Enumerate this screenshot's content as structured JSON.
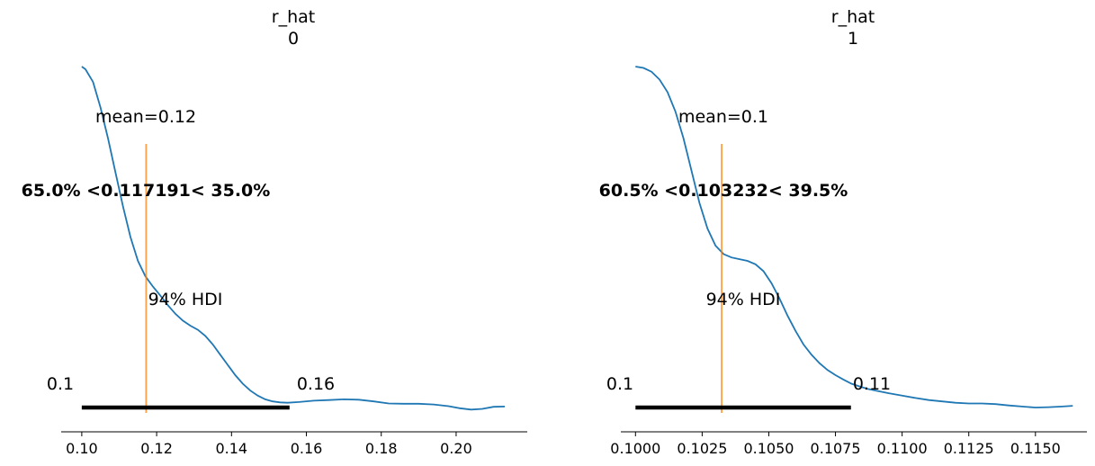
{
  "colors": {
    "kde": "#1f77b4",
    "reference": "#ff7f0e",
    "hdi": "#000000",
    "axis": "#000000"
  },
  "chart_data": [
    {
      "type": "line",
      "title": "r_hat",
      "subtitle": "0",
      "xlim": [
        0.0945,
        0.219
      ],
      "ylim": [
        0,
        1
      ],
      "x_ticks": [
        0.1,
        0.12,
        0.14,
        0.16,
        0.18,
        0.2
      ],
      "x_tick_labels": [
        "0.10",
        "0.12",
        "0.14",
        "0.16",
        "0.18",
        "0.20"
      ],
      "density": {
        "x": [
          0.1,
          0.101,
          0.103,
          0.105,
          0.107,
          0.109,
          0.111,
          0.113,
          0.115,
          0.117,
          0.119,
          0.121,
          0.123,
          0.125,
          0.127,
          0.129,
          0.131,
          0.133,
          0.135,
          0.137,
          0.139,
          0.141,
          0.143,
          0.145,
          0.147,
          0.149,
          0.151,
          0.153,
          0.155,
          0.158,
          0.162,
          0.166,
          0.17,
          0.174,
          0.178,
          0.182,
          0.186,
          0.19,
          0.194,
          0.198,
          0.201,
          0.204,
          0.207,
          0.21,
          0.213
        ],
        "y": [
          1.0,
          0.992,
          0.955,
          0.88,
          0.79,
          0.69,
          0.59,
          0.5,
          0.43,
          0.385,
          0.355,
          0.328,
          0.3,
          0.275,
          0.255,
          0.24,
          0.228,
          0.21,
          0.185,
          0.155,
          0.125,
          0.095,
          0.07,
          0.05,
          0.035,
          0.024,
          0.018,
          0.015,
          0.014,
          0.016,
          0.02,
          0.022,
          0.024,
          0.023,
          0.018,
          0.012,
          0.011,
          0.011,
          0.009,
          0.004,
          -0.002,
          -0.006,
          -0.004,
          0.002,
          0.003
        ]
      },
      "mean_label": "mean=0.12",
      "reference": {
        "value": 0.117191,
        "label": "65.0% <0.117191< 35.0%"
      },
      "hdi": {
        "low": 0.1,
        "high": 0.1555,
        "label": "94% HDI",
        "low_label": "0.1",
        "high_label": "0.16"
      }
    },
    {
      "type": "line",
      "title": "r_hat",
      "subtitle": "1",
      "xlim": [
        0.09945,
        0.11693
      ],
      "ylim": [
        0,
        1
      ],
      "x_ticks": [
        0.1,
        0.1025,
        0.105,
        0.1075,
        0.11,
        0.1125,
        0.115
      ],
      "x_tick_labels": [
        "0.1000",
        "0.1025",
        "0.1050",
        "0.1075",
        "0.1100",
        "0.1125",
        "0.1150"
      ],
      "density": {
        "x": [
          0.1,
          0.1003,
          0.1006,
          0.1009,
          0.1012,
          0.1015,
          0.1018,
          0.1021,
          0.1024,
          0.1027,
          0.103,
          0.1033,
          0.1036,
          0.1039,
          0.1042,
          0.1045,
          0.1048,
          0.1051,
          0.1054,
          0.1057,
          0.106,
          0.1063,
          0.1066,
          0.1069,
          0.1072,
          0.1075,
          0.1078,
          0.1081,
          0.1084,
          0.1087,
          0.109,
          0.1095,
          0.11,
          0.1105,
          0.111,
          0.1115,
          0.112,
          0.1125,
          0.113,
          0.1135,
          0.114,
          0.1145,
          0.115,
          0.1155,
          0.116,
          0.1164
        ],
        "y": [
          1.0,
          0.996,
          0.985,
          0.962,
          0.925,
          0.868,
          0.79,
          0.695,
          0.6,
          0.525,
          0.475,
          0.45,
          0.44,
          0.435,
          0.43,
          0.42,
          0.4,
          0.365,
          0.32,
          0.27,
          0.225,
          0.185,
          0.155,
          0.13,
          0.11,
          0.095,
          0.082,
          0.07,
          0.062,
          0.055,
          0.05,
          0.042,
          0.035,
          0.028,
          0.022,
          0.018,
          0.014,
          0.012,
          0.012,
          0.01,
          0.006,
          0.003,
          0.0,
          0.001,
          0.003,
          0.005
        ]
      },
      "mean_label": "mean=0.1",
      "reference": {
        "value": 0.103232,
        "label": "60.5% <0.103232< 39.5%"
      },
      "hdi": {
        "low": 0.1,
        "high": 0.10808,
        "label": "94% HDI",
        "low_label": "0.1",
        "high_label": "0.11"
      }
    }
  ]
}
